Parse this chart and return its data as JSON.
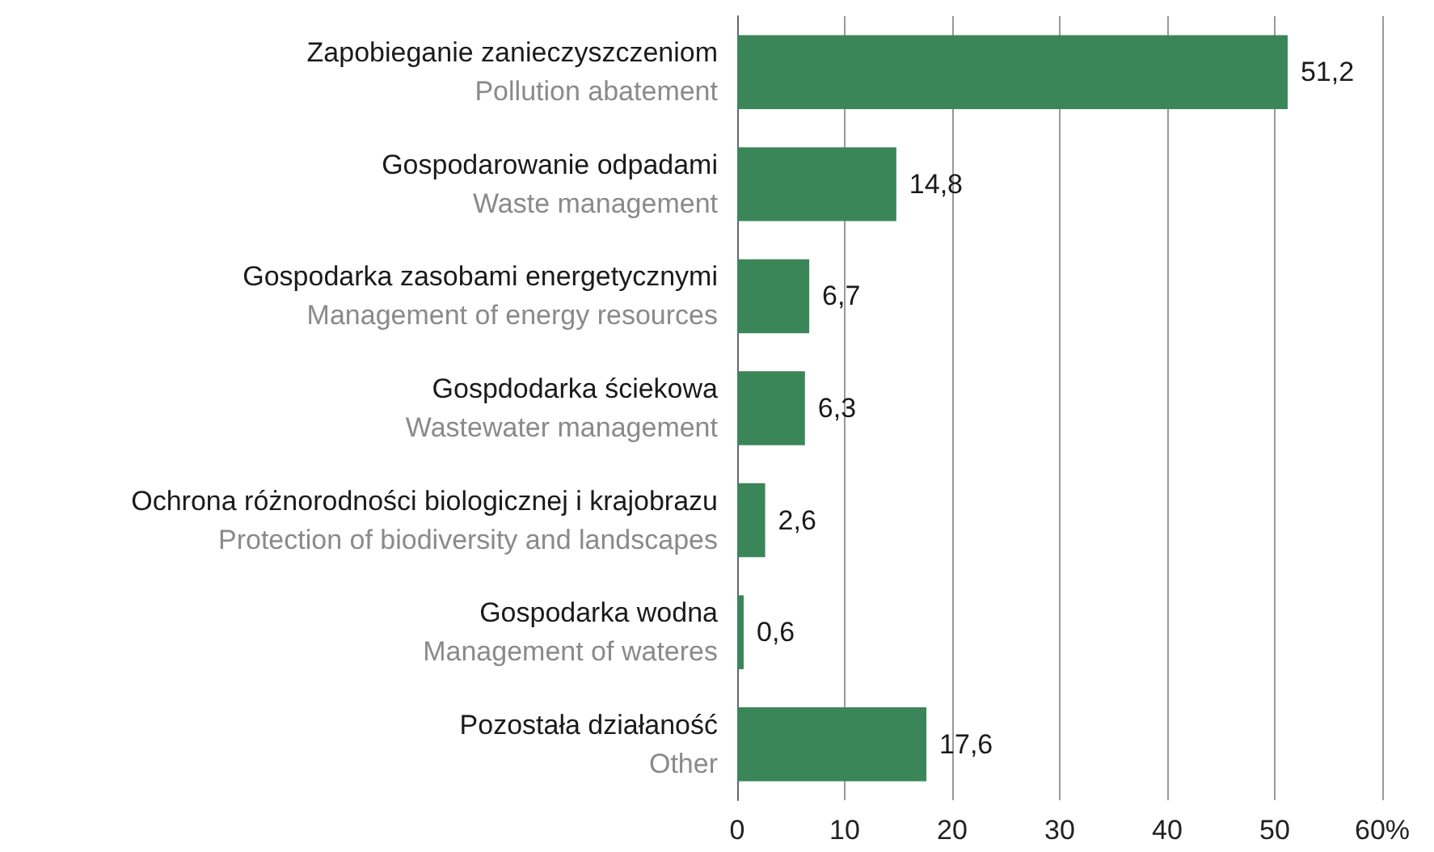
{
  "chart_data": {
    "type": "bar",
    "orientation": "horizontal",
    "categories": [
      "Zapobieganie zanieczyszczeniom\nPollution abatement",
      "Gospodarowanie odpadami\nWaste management",
      "Gospodarka zasobami energetycznymi\nManagement of energy resources",
      "Gospdodarka ściekowa\nWastewater management",
      "Ochrona różnorodności biologicznej i krajobrazu\nProtection of biodiversity and landscapes",
      "Gospodarka wodna\nManagement of wateres",
      "Pozostała działaność\nOther"
    ],
    "values": [
      51.2,
      14.8,
      6.7,
      6.3,
      2.6,
      0.6,
      17.6
    ],
    "value_labels": [
      "51,2",
      "14,8",
      "6,7",
      "6,3",
      "2,6",
      "0,6",
      "17,6"
    ],
    "color": "#3b8659",
    "xlim": [
      0,
      60
    ],
    "xticks": [
      0,
      10,
      20,
      30,
      40,
      50,
      {
        "value": 60,
        "label": "60%"
      }
    ],
    "grid": "x"
  }
}
